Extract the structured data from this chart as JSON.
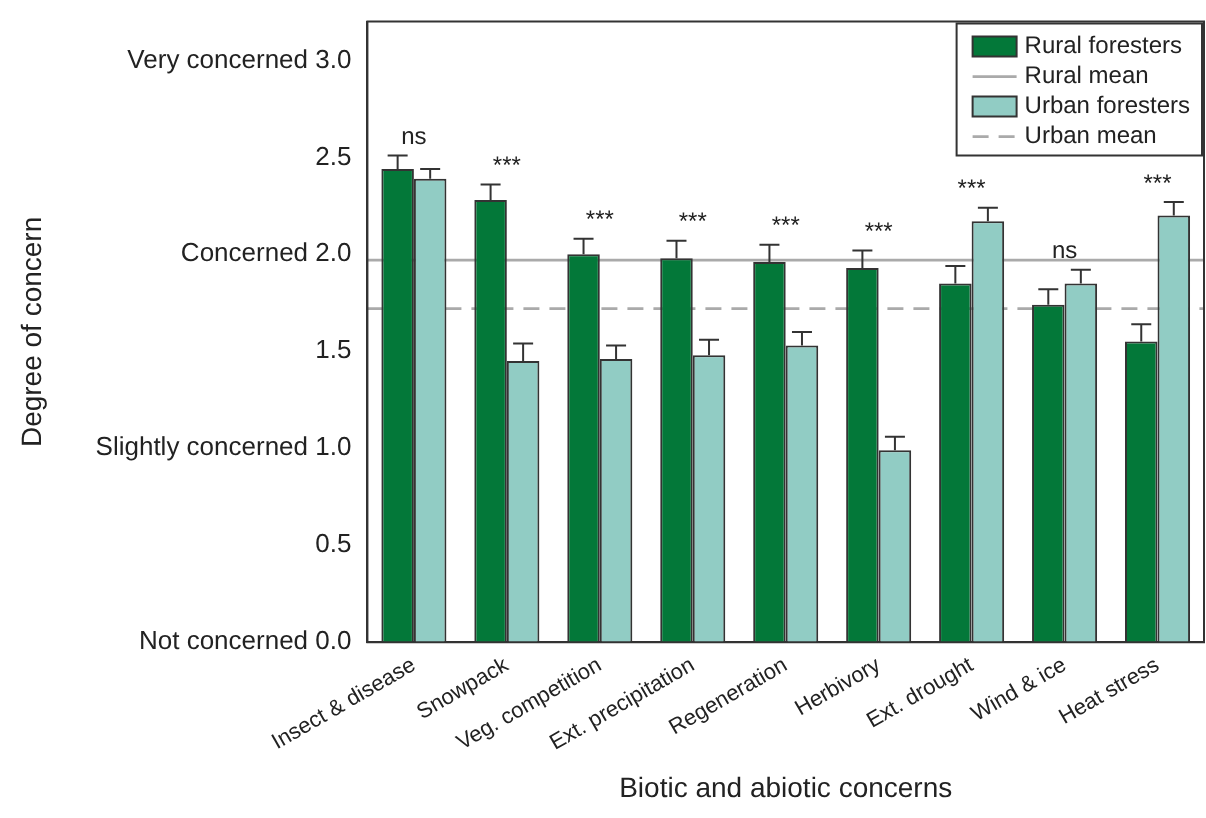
{
  "chart_data": {
    "type": "bar",
    "xlabel": "Biotic and abiotic concerns",
    "ylabel": "Degree of concern",
    "categories": [
      "Insect & disease",
      "Snowpack",
      "Veg. competition",
      "Ext. precipitation",
      "Regeneration",
      "Herbivory",
      "Ext. drought",
      "Wind & ice",
      "Heat stress"
    ],
    "series": [
      {
        "name": "Rural foresters",
        "color": "#037839",
        "values": [
          2.44,
          2.28,
          2.0,
          1.98,
          1.96,
          1.93,
          1.85,
          1.74,
          1.55
        ],
        "errors": [
          [
            2.44,
            2.51
          ],
          [
            2.28,
            2.36
          ],
          [
            2.0,
            2.08
          ],
          [
            1.98,
            2.07
          ],
          [
            1.96,
            2.05
          ],
          [
            1.93,
            2.02
          ],
          [
            1.85,
            1.94
          ],
          [
            1.74,
            1.82
          ],
          [
            1.55,
            1.64
          ]
        ]
      },
      {
        "name": "Urban foresters",
        "color": "#91ccc4",
        "values": [
          2.39,
          1.45,
          1.46,
          1.48,
          1.53,
          0.99,
          2.17,
          1.85,
          2.2
        ],
        "errors": [
          [
            2.39,
            2.44
          ],
          [
            1.45,
            1.54
          ],
          [
            1.46,
            1.53
          ],
          [
            1.48,
            1.56
          ],
          [
            1.53,
            1.6
          ],
          [
            0.99,
            1.06
          ],
          [
            2.17,
            2.24
          ],
          [
            1.85,
            1.92
          ],
          [
            2.2,
            2.27
          ]
        ]
      }
    ],
    "ref_lines": [
      {
        "axis": "y",
        "value": 1.97,
        "label": "Rural mean",
        "color": "#aaaaaa",
        "line_style": "solid"
      },
      {
        "axis": "y",
        "value": 1.72,
        "label": "Urban mean",
        "color": "#aaaaaa",
        "line_style": "dashed"
      }
    ],
    "annotations": [
      "ns",
      "***",
      "***",
      "***",
      "***",
      "***",
      "***",
      "ns",
      "***"
    ],
    "ylim": [
      0,
      3.2
    ],
    "yticks": [
      {
        "value": 0,
        "label": "Not concerned 0.0"
      },
      {
        "value": 0.5,
        "label": "0.5"
      },
      {
        "value": 1,
        "label": "Slightly concerned 1.0"
      },
      {
        "value": 1.5,
        "label": "1.5"
      },
      {
        "value": 2,
        "label": "Concerned 2.0"
      },
      {
        "value": 2.5,
        "label": "2.5"
      },
      {
        "value": 3,
        "label": "Very concerned 3.0"
      }
    ],
    "grid": false,
    "legend": "top right"
  }
}
